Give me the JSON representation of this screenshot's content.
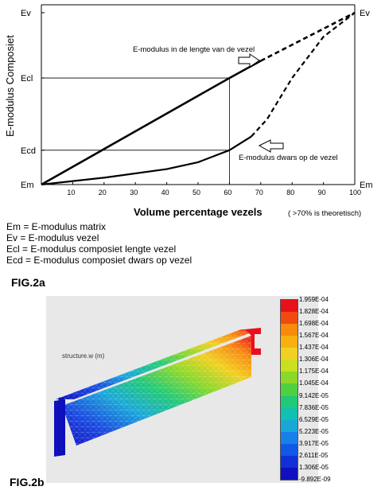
{
  "fig2a": {
    "ylabel": "E-modulus Composiet",
    "xlabel": "Volume percentage vezels",
    "xlabel_note": "( >70% is theoretisch)",
    "y_ticks_left": [
      "Ev",
      "Ecl",
      "Ecd",
      "Em"
    ],
    "y_ticks_right": [
      "Ev",
      "Em"
    ],
    "x_ticks": [
      "10",
      "20",
      "30",
      "40",
      "50",
      "60",
      "70",
      "80",
      "90",
      "100"
    ],
    "annotation_lengthwise": "E-modulus in de lengte van de vezel",
    "annotation_transverse": "E-modulus dwars op de vezel",
    "legend": [
      "Em = E-modulus  matrix",
      "Ev  = E-modulus vezel",
      "Ecl = E-modulus composiet lengte vezel",
      "Ecd = E-modulus composiet dwars  op vezel"
    ],
    "caption": "FIG.2a"
  },
  "chart_data": {
    "type": "line",
    "xlabel": "Volume percentage vezels",
    "ylabel": "E-modulus Composiet",
    "xlim": [
      0,
      100
    ],
    "x_ticks": [
      10,
      20,
      30,
      40,
      50,
      60,
      70,
      80,
      90,
      100
    ],
    "y_ticks": [
      "Em",
      "Ecd",
      "Ecl",
      "Ev"
    ],
    "series": [
      {
        "name": "E-modulus in de lengte van de vezel",
        "x": [
          0,
          60,
          70,
          100
        ],
        "y": [
          0,
          0.62,
          0.72,
          1.0
        ],
        "solid_until_x": 70
      },
      {
        "name": "E-modulus dwars op de vezel",
        "x": [
          0,
          20,
          40,
          50,
          60,
          67,
          72,
          80,
          90,
          100
        ],
        "y": [
          0,
          0.04,
          0.09,
          0.13,
          0.2,
          0.28,
          0.38,
          0.62,
          0.86,
          1.0
        ],
        "solid_until_x": 70
      }
    ],
    "reference_lines": [
      {
        "label": "Ecl",
        "x": 60
      },
      {
        "label": "Ecd",
        "x": 60
      }
    ]
  },
  "fig2b": {
    "plot_title": "structure.w (m)",
    "scale_values": [
      "1.959E-04",
      "1.828E-04",
      "1.698E-04",
      "1.567E-04",
      "1.437E-04",
      "1.306E-04",
      "1.175E-04",
      "1.045E-04",
      "9.142E-05",
      "7.836E-05",
      "6.529E-05",
      "5.223E-05",
      "3.917E-05",
      "2.611E-05",
      "1.306E-05",
      "-9.892E-09"
    ],
    "scale_colors": [
      "#e8101c",
      "#f04a10",
      "#f88a0c",
      "#f8b010",
      "#f0d020",
      "#c8e020",
      "#8cd828",
      "#50d040",
      "#20c878",
      "#10c0b0",
      "#18a8d8",
      "#1880e8",
      "#1058e8",
      "#1030d8",
      "#1010c0"
    ],
    "caption": "FIG.2b"
  }
}
